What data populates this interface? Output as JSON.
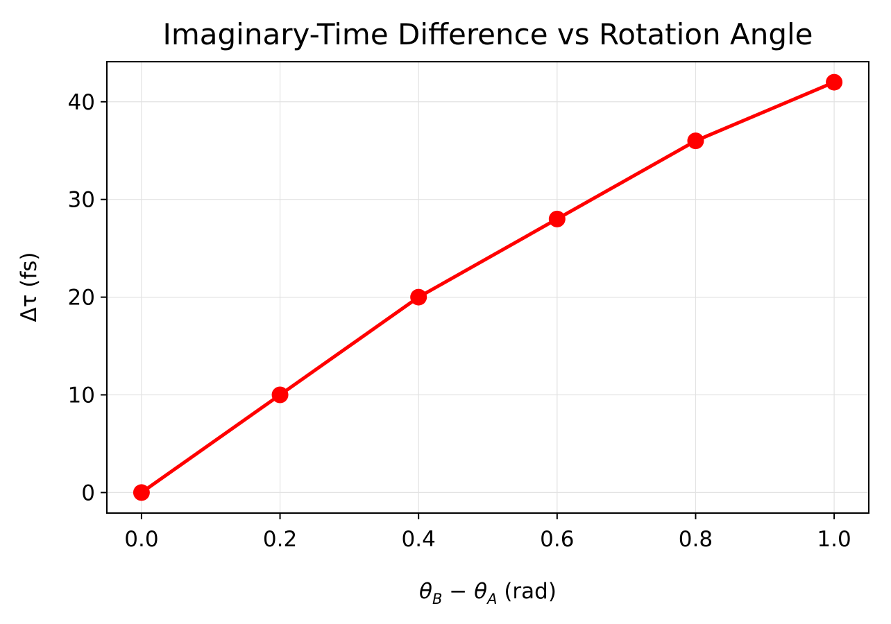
{
  "chart_data": {
    "type": "line",
    "title": "Imaginary-Time Difference vs Rotation Angle",
    "xlabel": {
      "symbol": "θ",
      "sub_b": "B",
      "minus": " − ",
      "sub_a": "A",
      "unit": " (rad)"
    },
    "ylabel": "Δτ (fs)",
    "x": [
      0.0,
      0.2,
      0.4,
      0.6,
      0.8,
      1.0
    ],
    "series": [
      {
        "values": [
          0,
          10,
          20,
          28,
          36,
          42
        ],
        "color": "#ff0000",
        "marker": "circle"
      }
    ],
    "xlim": [
      -0.05,
      1.05
    ],
    "ylim": [
      -2.1,
      44.1
    ],
    "xticks": [
      "0.0",
      "0.2",
      "0.4",
      "0.6",
      "0.8",
      "1.0"
    ],
    "yticks": [
      "0",
      "10",
      "20",
      "30",
      "40"
    ],
    "grid": true
  }
}
